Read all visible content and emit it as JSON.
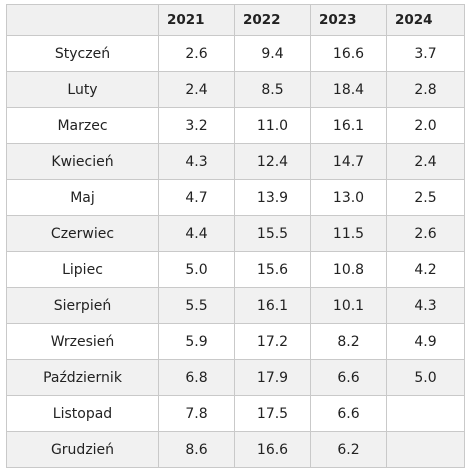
{
  "table": {
    "corner_label": "",
    "headers": [
      "2021",
      "2022",
      "2023",
      "2024"
    ],
    "rows": [
      {
        "month": "Styczeń",
        "values": [
          "2.6",
          "9.4",
          "16.6",
          "3.7"
        ]
      },
      {
        "month": "Luty",
        "values": [
          "2.4",
          "8.5",
          "18.4",
          "2.8"
        ]
      },
      {
        "month": "Marzec",
        "values": [
          "3.2",
          "11.0",
          "16.1",
          "2.0"
        ]
      },
      {
        "month": "Kwiecień",
        "values": [
          "4.3",
          "12.4",
          "14.7",
          "2.4"
        ]
      },
      {
        "month": "Maj",
        "values": [
          "4.7",
          "13.9",
          "13.0",
          "2.5"
        ]
      },
      {
        "month": "Czerwiec",
        "values": [
          "4.4",
          "15.5",
          "11.5",
          "2.6"
        ]
      },
      {
        "month": "Lipiec",
        "values": [
          "5.0",
          "15.6",
          "10.8",
          "4.2"
        ]
      },
      {
        "month": "Sierpień",
        "values": [
          "5.5",
          "16.1",
          "10.1",
          "4.3"
        ]
      },
      {
        "month": "Wrzesień",
        "values": [
          "5.9",
          "17.2",
          "8.2",
          "4.9"
        ]
      },
      {
        "month": "Październik",
        "values": [
          "6.8",
          "17.9",
          "6.6",
          "5.0"
        ]
      },
      {
        "month": "Listopad",
        "values": [
          "7.8",
          "17.5",
          "6.6",
          ""
        ]
      },
      {
        "month": "Grudzień",
        "values": [
          "8.6",
          "16.6",
          "6.2",
          ""
        ]
      }
    ]
  }
}
